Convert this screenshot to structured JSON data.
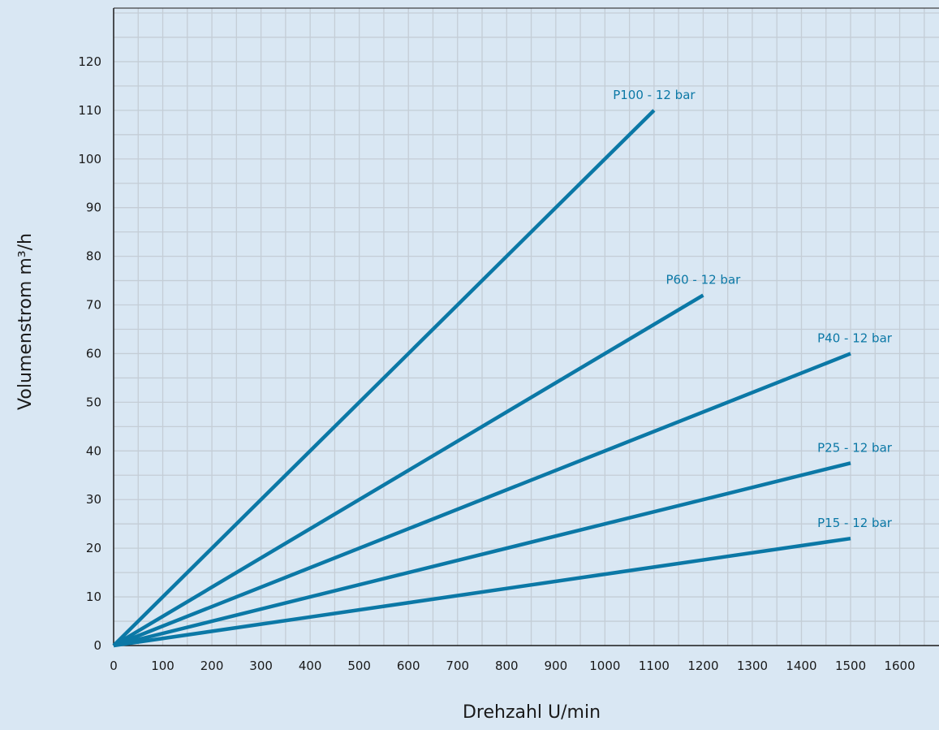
{
  "chart_data": {
    "type": "line",
    "title": "",
    "xlabel": "Drehzahl U/min",
    "ylabel": "Volumenstrom m³/h",
    "xlim": [
      0,
      1680
    ],
    "ylim": [
      0,
      131
    ],
    "x_ticks": [
      0,
      100,
      200,
      300,
      400,
      500,
      600,
      700,
      800,
      900,
      1000,
      1100,
      1200,
      1300,
      1400,
      1500,
      1600
    ],
    "y_ticks": [
      0,
      10,
      20,
      30,
      40,
      50,
      60,
      70,
      80,
      90,
      100,
      110,
      120
    ],
    "grid": true,
    "legend": "none",
    "series_color": "#0b78a6",
    "background_color": "#d9e7f3",
    "grid_color": "#c4cdd6",
    "series": [
      {
        "name": "P100 - 12 bar",
        "x": [
          0,
          1100
        ],
        "y": [
          0,
          110
        ]
      },
      {
        "name": "P60 - 12 bar",
        "x": [
          0,
          1200
        ],
        "y": [
          0,
          72
        ]
      },
      {
        "name": "P40 - 12 bar",
        "x": [
          0,
          1500
        ],
        "y": [
          0,
          60
        ]
      },
      {
        "name": "P25 - 12 bar",
        "x": [
          0,
          1500
        ],
        "y": [
          0,
          37.5
        ]
      },
      {
        "name": "P15 - 12 bar",
        "x": [
          0,
          1500
        ],
        "y": [
          0,
          22
        ]
      }
    ]
  }
}
